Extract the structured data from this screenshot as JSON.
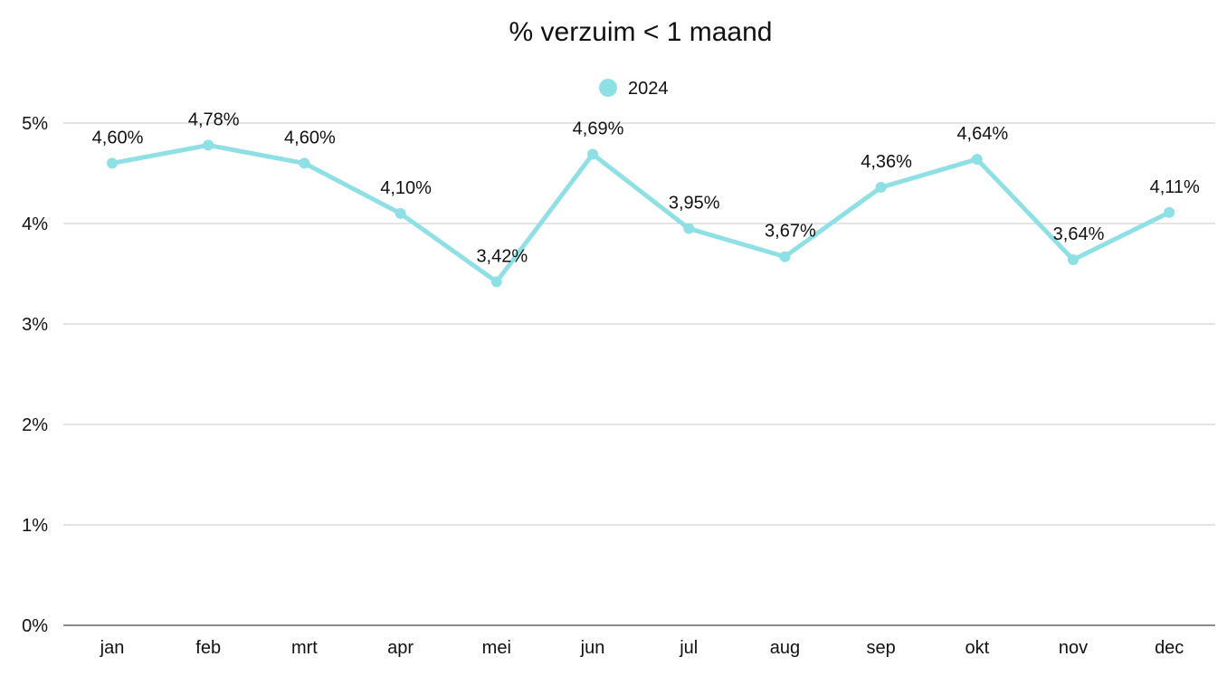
{
  "chart_data": {
    "type": "line",
    "title": "% verzuim < 1 maand",
    "categories": [
      "jan",
      "feb",
      "mrt",
      "apr",
      "mei",
      "jun",
      "jul",
      "aug",
      "sep",
      "okt",
      "nov",
      "dec"
    ],
    "series": [
      {
        "name": "2024",
        "color": "#8FE0E4",
        "values": [
          4.6,
          4.78,
          4.6,
          4.1,
          3.42,
          4.69,
          3.95,
          3.67,
          4.36,
          4.64,
          3.64,
          4.11
        ],
        "labels": [
          "4,60%",
          "4,78%",
          "4,60%",
          "4,10%",
          "3,42%",
          "4,69%",
          "3,95%",
          "3,67%",
          "4,36%",
          "4,64%",
          "3,64%",
          "4,11%"
        ]
      }
    ],
    "yticks": [
      0,
      1,
      2,
      3,
      4,
      5
    ],
    "ytick_labels": [
      "0%",
      "1%",
      "2%",
      "3%",
      "4%",
      "5%"
    ],
    "ylim": [
      0,
      5
    ],
    "xlabel": "",
    "ylabel": "",
    "grid": true,
    "legend_position": "top-center"
  }
}
